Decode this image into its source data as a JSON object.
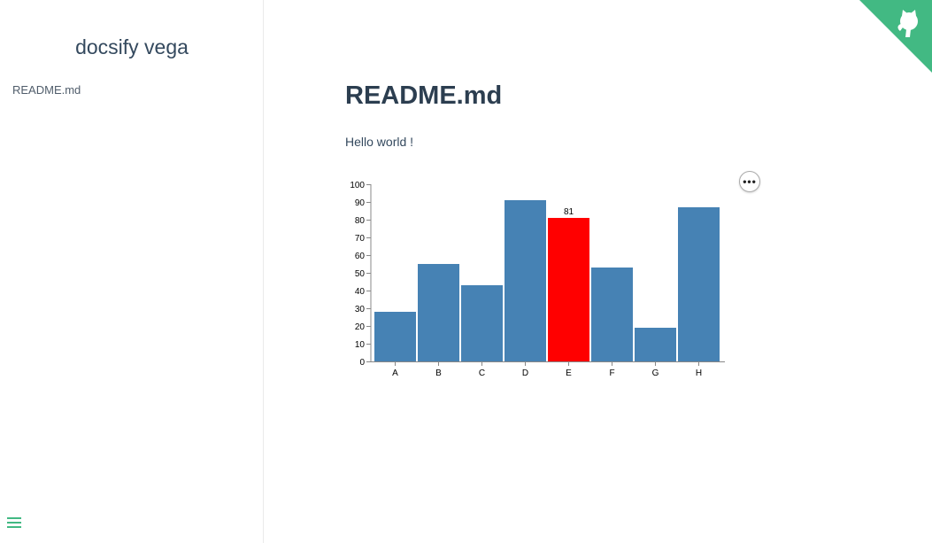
{
  "sidebar": {
    "app_name": "docsify vega",
    "items": [
      {
        "label": "README.md"
      }
    ],
    "toggle_icon": "hamburger-icon"
  },
  "main": {
    "title": "README.md",
    "paragraph": "Hello world !",
    "actions_icon": "ellipsis-icon",
    "actions_label": "•••"
  },
  "github_corner": {
    "icon": "github-octocat-icon",
    "color": "#42b983"
  },
  "colors": {
    "accent": "#42b983",
    "bar": "#4682b4",
    "highlight": "#ff0000"
  },
  "chart_data": {
    "type": "bar",
    "categories": [
      "A",
      "B",
      "C",
      "D",
      "E",
      "F",
      "G",
      "H"
    ],
    "values": [
      28,
      55,
      43,
      91,
      81,
      53,
      19,
      87
    ],
    "highlighted_index": 4,
    "highlight_label": "81",
    "ylim": [
      0,
      100
    ],
    "yticks": [
      0,
      10,
      20,
      30,
      40,
      50,
      60,
      70,
      80,
      90,
      100
    ],
    "grid": false
  }
}
